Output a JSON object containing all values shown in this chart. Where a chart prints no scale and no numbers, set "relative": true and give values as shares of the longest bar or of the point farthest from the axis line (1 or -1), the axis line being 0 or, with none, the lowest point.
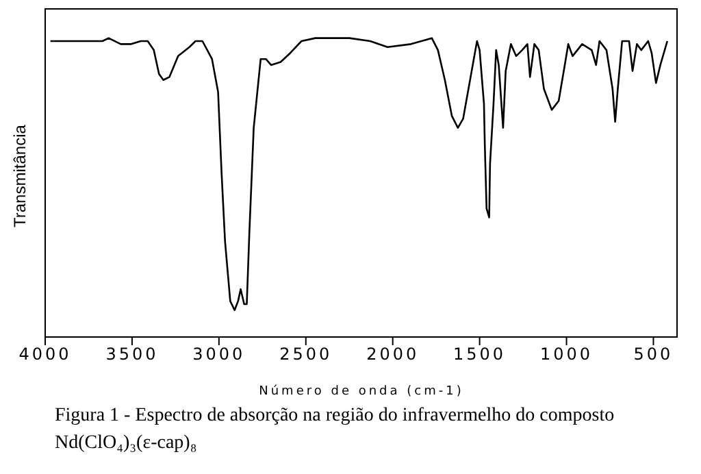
{
  "chart_data": {
    "type": "line",
    "relative": true,
    "xlabel": "Número de onda (cm-1)",
    "ylabel": "Transmitância",
    "xlim": [
      4000,
      360
    ],
    "xticks": [
      4000,
      3500,
      3000,
      2500,
      2000,
      1500,
      1000,
      500
    ],
    "marker": "none",
    "line_style": "solid",
    "annotations": [
      "Figura 1 - Espectro de absorção na região do infravermelho do composto Nd(ClO₄)₃(ε-cap)₈"
    ],
    "series": [
      {
        "color": "#000000",
        "x": [
          3970,
          3670,
          3635,
          3565,
          3505,
          3450,
          3410,
          3375,
          3345,
          3320,
          3285,
          3235,
          3170,
          3135,
          3095,
          3040,
          3005,
          2985,
          2965,
          2935,
          2910,
          2890,
          2875,
          2855,
          2840,
          2825,
          2800,
          2760,
          2730,
          2700,
          2645,
          2590,
          2525,
          2445,
          2330,
          2250,
          2130,
          2030,
          1895,
          1775,
          1740,
          1700,
          1660,
          1625,
          1595,
          1555,
          1515,
          1500,
          1475,
          1470,
          1460,
          1445,
          1440,
          1420,
          1405,
          1390,
          1365,
          1350,
          1320,
          1290,
          1255,
          1225,
          1210,
          1185,
          1160,
          1130,
          1085,
          1045,
          1010,
          990,
          965,
          910,
          855,
          830,
          810,
          770,
          735,
          720,
          705,
          680,
          640,
          620,
          595,
          570,
          530,
          510,
          485,
          460,
          420
        ],
        "values": [
          0.99,
          0.99,
          1.0,
          0.98,
          0.98,
          0.99,
          0.99,
          0.96,
          0.88,
          0.86,
          0.87,
          0.94,
          0.97,
          0.99,
          0.99,
          0.93,
          0.82,
          0.55,
          0.32,
          0.12,
          0.09,
          0.12,
          0.16,
          0.11,
          0.11,
          0.35,
          0.7,
          0.93,
          0.93,
          0.91,
          0.92,
          0.95,
          0.99,
          1.0,
          1.0,
          1.0,
          0.99,
          0.97,
          0.98,
          1.0,
          0.96,
          0.86,
          0.74,
          0.7,
          0.73,
          0.86,
          0.99,
          0.96,
          0.78,
          0.64,
          0.43,
          0.4,
          0.58,
          0.78,
          0.96,
          0.91,
          0.7,
          0.89,
          0.98,
          0.94,
          0.96,
          0.98,
          0.87,
          0.98,
          0.96,
          0.83,
          0.76,
          0.79,
          0.91,
          0.98,
          0.94,
          0.98,
          0.96,
          0.91,
          0.99,
          0.96,
          0.83,
          0.72,
          0.83,
          0.99,
          0.99,
          0.89,
          0.98,
          0.96,
          0.99,
          0.95,
          0.85,
          0.91,
          0.99
        ]
      }
    ]
  }
}
